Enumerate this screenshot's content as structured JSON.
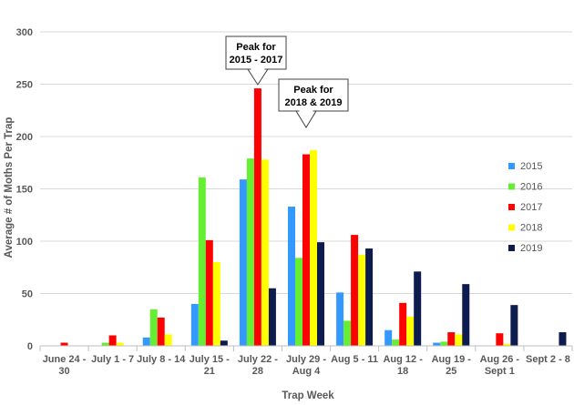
{
  "chart_data": {
    "type": "bar",
    "title": "",
    "xlabel": "Trap Week",
    "ylabel": "Average # of Moths Per Trap",
    "ylim": [
      0,
      300
    ],
    "yticks": [
      "0",
      "50",
      "100",
      "150",
      "200",
      "250",
      "300"
    ],
    "grid": "horizontal",
    "legend_position": "right",
    "categories": [
      [
        "June 24 -",
        "30"
      ],
      [
        "July 1 - 7"
      ],
      [
        "July 8 - 14"
      ],
      [
        "July 15 -",
        "21"
      ],
      [
        "July 22 -",
        "28"
      ],
      [
        "July 29 -",
        "Aug 4"
      ],
      [
        "Aug 5 - 11"
      ],
      [
        "Aug 12 -",
        "18"
      ],
      [
        "Aug 19 -",
        "25"
      ],
      [
        "Aug 26 -",
        "Sept 1"
      ],
      [
        "Sept 2 - 8"
      ]
    ],
    "series": [
      {
        "name": "2015",
        "color": "#3399FF",
        "values": [
          0,
          0,
          8,
          40,
          159,
          133,
          51,
          15,
          3,
          0,
          0
        ]
      },
      {
        "name": "2016",
        "color": "#66EE33",
        "values": [
          0,
          3,
          35,
          161,
          179,
          84,
          24,
          6,
          4,
          0,
          0
        ]
      },
      {
        "name": "2017",
        "color": "#FF0000",
        "values": [
          3,
          10,
          27,
          101,
          246,
          183,
          106,
          41,
          13,
          12,
          0
        ]
      },
      {
        "name": "2018",
        "color": "#FFFF00",
        "values": [
          0,
          3,
          11,
          80,
          178,
          187,
          87,
          28,
          11,
          2,
          0
        ]
      },
      {
        "name": "2019",
        "color": "#0D1B4F",
        "values": [
          0,
          0,
          0,
          5,
          55,
          99,
          93,
          71,
          59,
          39,
          13
        ]
      }
    ],
    "annotations": [
      {
        "lines": [
          "Peak for",
          "2015 - 2017"
        ],
        "category_index": 4
      },
      {
        "lines": [
          "Peak for",
          "2018 & 2019"
        ],
        "category_index": 5
      }
    ]
  }
}
